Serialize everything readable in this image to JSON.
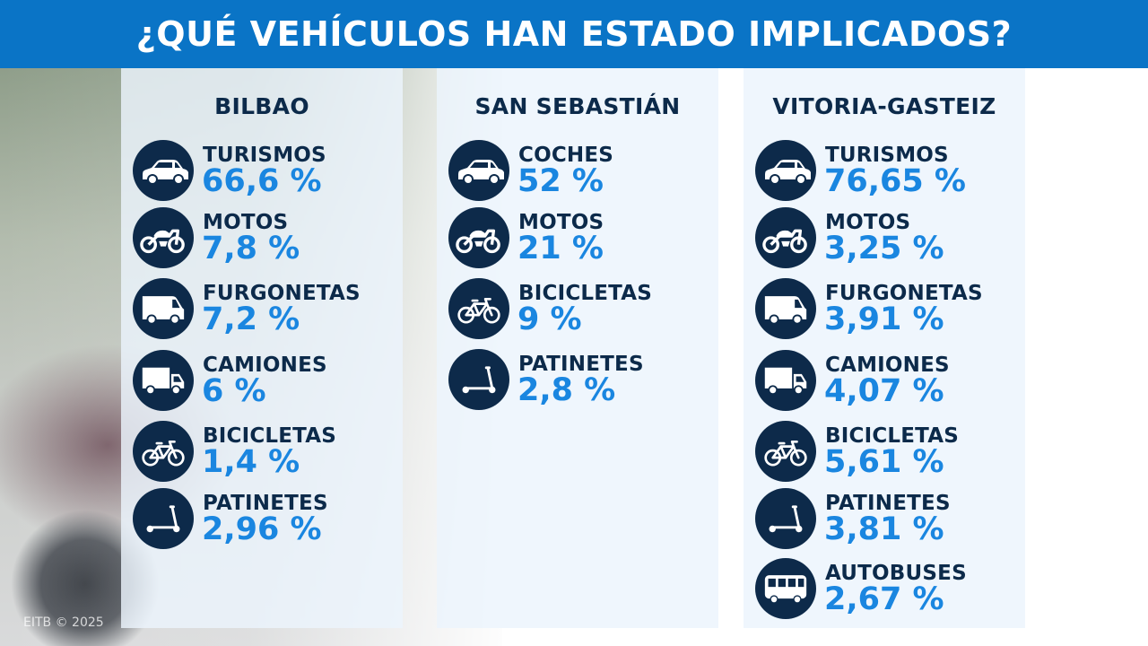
{
  "title": "¿QUÉ VEHÍCULOS HAN ESTADO IMPLICADOS?",
  "colors": {
    "header_bg": "#0a74c6",
    "icon_bg": "#0d2a4a",
    "label": "#0c2a4a",
    "value": "#1a86e0"
  },
  "watermark": "EITB © 2025",
  "cities": [
    {
      "name": "BILBAO",
      "items": [
        {
          "icon": "car-icon",
          "label": "TURISMOS",
          "value": "66,6 %"
        },
        {
          "icon": "motorcycle-icon",
          "label": "MOTOS",
          "value": "7,8 %"
        },
        {
          "icon": "van-icon",
          "label": "FURGONETAS",
          "value": "7,2 %"
        },
        {
          "icon": "truck-icon",
          "label": "CAMIONES",
          "value": "6 %"
        },
        {
          "icon": "bicycle-icon",
          "label": "BICICLETAS",
          "value": "1,4 %"
        },
        {
          "icon": "scooter-icon",
          "label": "PATINETES",
          "value": "2,96 %"
        }
      ]
    },
    {
      "name": "SAN SEBASTIÁN",
      "items": [
        {
          "icon": "car-icon",
          "label": "COCHES",
          "value": "52 %"
        },
        {
          "icon": "motorcycle-icon",
          "label": "MOTOS",
          "value": "21 %"
        },
        {
          "icon": "bicycle-icon",
          "label": "BICICLETAS",
          "value": "9 %"
        },
        {
          "icon": "scooter-icon",
          "label": "PATINETES",
          "value": "2,8 %"
        }
      ]
    },
    {
      "name": "VITORIA-GASTEIZ",
      "items": [
        {
          "icon": "car-icon",
          "label": "TURISMOS",
          "value": "76,65 %"
        },
        {
          "icon": "motorcycle-icon",
          "label": "MOTOS",
          "value": "3,25 %"
        },
        {
          "icon": "van-icon",
          "label": "FURGONETAS",
          "value": "3,91 %"
        },
        {
          "icon": "truck-icon",
          "label": "CAMIONES",
          "value": "4,07 %"
        },
        {
          "icon": "bicycle-icon",
          "label": "BICICLETAS",
          "value": "5,61 %"
        },
        {
          "icon": "scooter-icon",
          "label": "PATINETES",
          "value": "3,81 %"
        },
        {
          "icon": "bus-icon",
          "label": "AUTOBUSES",
          "value": "2,67 %"
        }
      ]
    }
  ]
}
